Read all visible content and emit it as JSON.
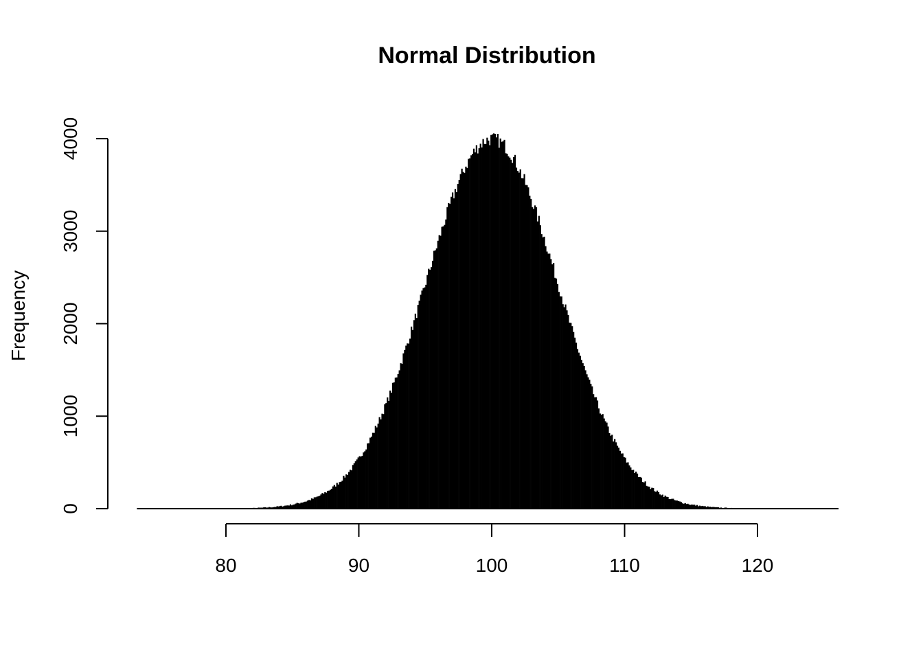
{
  "chart_data": {
    "type": "bar",
    "subtype": "histogram",
    "title": "Normal Distribution",
    "xlabel": "",
    "ylabel": "Frequency",
    "x_ticks": [
      "80",
      "90",
      "100",
      "110",
      "120"
    ],
    "y_ticks": [
      "0",
      "1000",
      "2000",
      "3000",
      "4000"
    ],
    "x_range": [
      73.3,
      126.1
    ],
    "ylim": [
      0,
      4150
    ],
    "grid": false,
    "bar_color": "#000000",
    "bin_width": 0.1,
    "x": [
      80,
      80.5,
      81,
      81.5,
      82,
      82.5,
      83,
      83.5,
      84,
      84.5,
      85,
      85.5,
      86,
      86.5,
      87,
      87.5,
      88,
      88.5,
      89,
      89.5,
      90,
      90.5,
      91,
      91.5,
      92,
      92.5,
      93,
      93.5,
      94,
      94.5,
      95,
      95.5,
      96,
      96.5,
      97,
      97.5,
      98,
      98.5,
      99,
      99.5,
      100,
      100.5,
      101,
      101.5,
      102,
      102.5,
      103,
      103.5,
      104,
      104.5,
      105,
      105.5,
      106,
      106.5,
      107,
      107.5,
      108,
      108.5,
      109,
      109.5,
      110,
      110.5,
      111,
      111.5,
      112,
      112.5,
      113,
      113.5,
      114,
      114.5,
      115,
      115.5,
      116,
      116.5,
      117,
      117.5,
      118,
      118.5,
      119,
      119.5,
      120
    ],
    "frequency": [
      1,
      2,
      3,
      4,
      6,
      9,
      12,
      17,
      24,
      33,
      44,
      60,
      79,
      104,
      136,
      176,
      224,
      284,
      356,
      441,
      541,
      658,
      792,
      943,
      1112,
      1299,
      1501,
      1718,
      1947,
      2184,
      2426,
      2668,
      2904,
      3131,
      3341,
      3530,
      3692,
      3824,
      3921,
      3980,
      4000,
      3980,
      3921,
      3824,
      3692,
      3530,
      3341,
      3131,
      2904,
      2668,
      2426,
      2184,
      1947,
      1718,
      1501,
      1299,
      1112,
      943,
      792,
      658,
      541,
      441,
      356,
      284,
      224,
      176,
      136,
      104,
      79,
      60,
      44,
      33,
      24,
      17,
      12,
      9,
      6,
      4,
      3,
      2,
      1
    ]
  }
}
